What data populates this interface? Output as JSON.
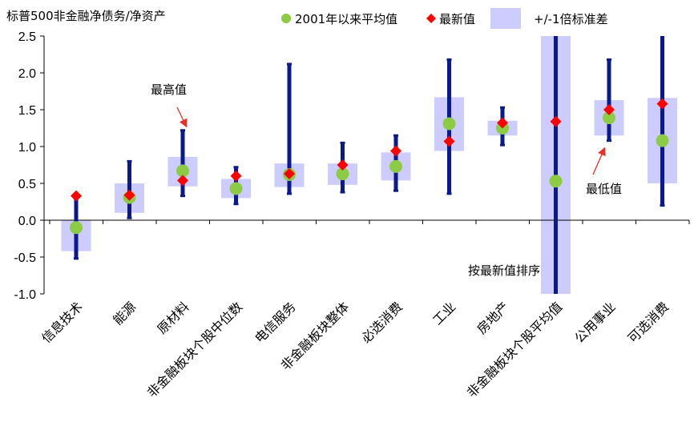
{
  "chart_data": {
    "type": "scatter",
    "title": "标普500非金融净债务/净资产",
    "legend": {
      "avg_label": "2001年以来平均值",
      "latest_label": "最新值",
      "band_label": "+/-1倍标准差",
      "placement": "top"
    },
    "ylim": [
      -1.0,
      2.5
    ],
    "yticks": [
      2.5,
      2.0,
      1.5,
      1.0,
      0.5,
      0.0,
      -0.5,
      -1.0
    ],
    "ytick_labels": [
      "2.5",
      "2.0",
      "1.5",
      "1.0",
      "0.5",
      "0.0",
      "-0.5",
      "-1.0"
    ],
    "categories": [
      "信息技术",
      "能源",
      "原材料",
      "非金融板块个股中位数",
      "电信服务",
      "非金融板块整体",
      "必选消费",
      "工业",
      "房地产",
      "非金融板块个股平均值",
      "公用事业",
      "可选消费"
    ],
    "series": [
      {
        "name": "range_min",
        "values": [
          -0.52,
          0.03,
          0.33,
          0.22,
          0.36,
          0.38,
          0.4,
          0.36,
          1.02,
          -1.0,
          1.08,
          0.2
        ]
      },
      {
        "name": "range_max",
        "values": [
          0.3,
          0.8,
          1.22,
          0.72,
          2.12,
          1.05,
          1.15,
          2.18,
          1.53,
          2.5,
          2.18,
          2.5
        ]
      },
      {
        "name": "band_low",
        "values": [
          -0.42,
          0.1,
          0.46,
          0.3,
          0.45,
          0.48,
          0.54,
          0.94,
          1.15,
          -1.0,
          1.15,
          0.5
        ]
      },
      {
        "name": "band_high",
        "values": [
          0.0,
          0.5,
          0.86,
          0.56,
          0.77,
          0.77,
          0.92,
          1.67,
          1.35,
          2.5,
          1.63,
          1.66
        ]
      },
      {
        "name": "2001年以来平均值",
        "values": [
          -0.1,
          0.31,
          0.67,
          0.43,
          0.62,
          0.63,
          0.73,
          1.31,
          1.25,
          0.53,
          1.39,
          1.08
        ]
      },
      {
        "name": "最新值",
        "values": [
          0.33,
          0.34,
          0.54,
          0.6,
          0.63,
          0.75,
          0.94,
          1.07,
          1.32,
          1.34,
          1.5,
          1.58
        ]
      }
    ],
    "annotations": [
      {
        "text": "最高值",
        "category": "原材料",
        "value": 1.22
      },
      {
        "text": "最低值",
        "category": "公用事业",
        "value": 1.08
      },
      {
        "text": "按最新值排序",
        "category": "房地产",
        "value": -0.7
      }
    ],
    "colors": {
      "band": "#ccccff",
      "range": "#0a1a8c",
      "avg": "#8dcb45",
      "latest": "#ff0000",
      "axis": "#000000",
      "arrow": "#e8302a"
    }
  }
}
